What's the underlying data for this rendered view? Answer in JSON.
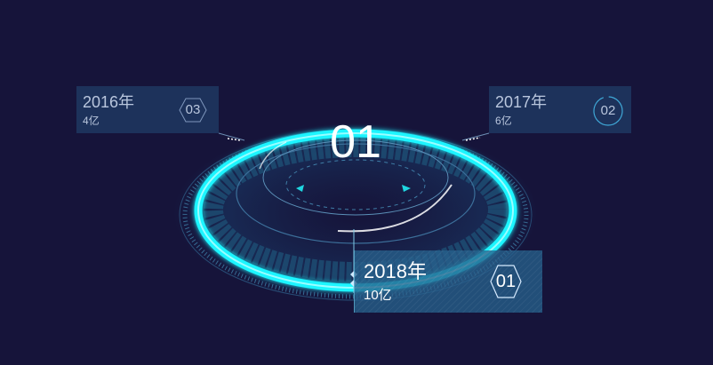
{
  "center": {
    "number": "01"
  },
  "cards": {
    "left": {
      "year": "2016年",
      "amount": "4亿",
      "index": "03"
    },
    "right": {
      "year": "2017年",
      "amount": "6亿",
      "index": "02"
    },
    "active": {
      "year": "2018年",
      "amount": "10亿",
      "index": "01"
    }
  },
  "colors": {
    "background": "#16143a",
    "ring_glow": "#1ff5ff",
    "ring_dark": "#1a4a6a",
    "card": "#244a76",
    "card_active": "#26608c"
  }
}
